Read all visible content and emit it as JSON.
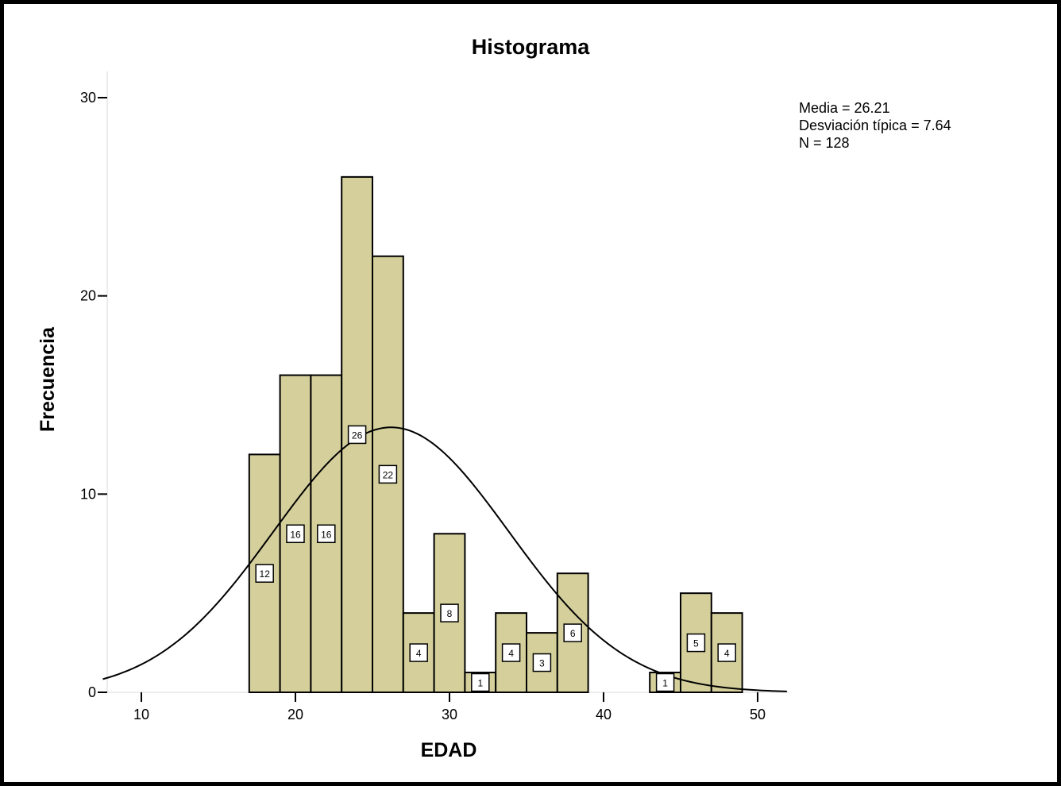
{
  "chart_data": {
    "type": "bar",
    "title": "Histograma",
    "xlabel": "EDAD",
    "ylabel": "Frecuencia",
    "xlim": [
      7.5,
      52.5
    ],
    "ylim": [
      0,
      30
    ],
    "x_ticks": [
      10,
      20,
      30,
      40,
      50
    ],
    "y_ticks": [
      0,
      10,
      20,
      30
    ],
    "bin_width": 2,
    "bins": [
      {
        "start": 17,
        "end": 19,
        "value": 12,
        "label": "12"
      },
      {
        "start": 19,
        "end": 21,
        "value": 16,
        "label": "16"
      },
      {
        "start": 21,
        "end": 23,
        "value": 16,
        "label": "16"
      },
      {
        "start": 23,
        "end": 25,
        "value": 26,
        "label": "26"
      },
      {
        "start": 25,
        "end": 27,
        "value": 22,
        "label": "22"
      },
      {
        "start": 27,
        "end": 29,
        "value": 4,
        "label": "4"
      },
      {
        "start": 29,
        "end": 31,
        "value": 8,
        "label": "8"
      },
      {
        "start": 31,
        "end": 33,
        "value": 1,
        "label": "1"
      },
      {
        "start": 33,
        "end": 35,
        "value": 4,
        "label": "4"
      },
      {
        "start": 35,
        "end": 37,
        "value": 3,
        "label": "3"
      },
      {
        "start": 37,
        "end": 39,
        "value": 6,
        "label": "6"
      },
      {
        "start": 43,
        "end": 45,
        "value": 1,
        "label": "1"
      },
      {
        "start": 45,
        "end": 47,
        "value": 5,
        "label": "5"
      },
      {
        "start": 47,
        "end": 49,
        "value": 4,
        "label": "4"
      }
    ],
    "normal_curve": {
      "mean": 26.21,
      "std": 7.64,
      "n": 128
    },
    "stats": {
      "mean_text": "Media = 26.21",
      "std_text": "Desviación típica = 7.64",
      "n_text": "N = 128"
    },
    "grid": false,
    "bar_color": "#d4cf9b",
    "bar_edge_color": "#000000",
    "curve_color": "#000000"
  }
}
